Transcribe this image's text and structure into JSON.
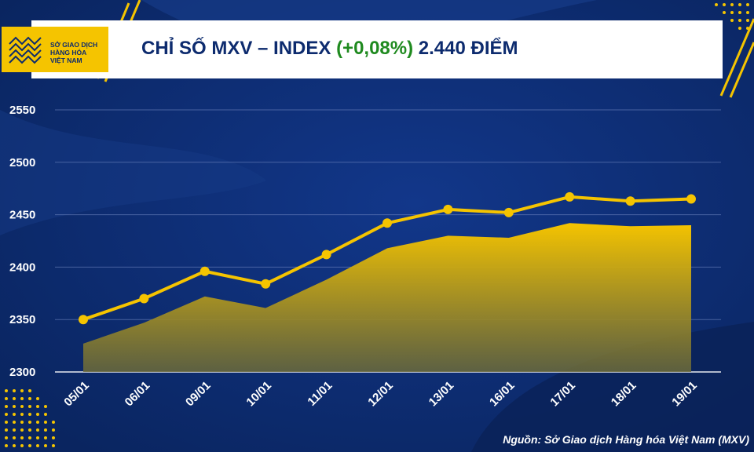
{
  "logo": {
    "line1": "SỞ GIAO DỊCH",
    "line2": "HÀNG HÓA",
    "line3": "VIỆT NAM"
  },
  "header": {
    "title_prefix": "CHỈ SỐ MXV – INDEX ",
    "change": "(+0,08%)",
    "title_suffix": " 2.440 ĐIỂM"
  },
  "source": "Nguồn: Sở Giao dịch Hàng hóa Việt Nam (MXV)",
  "colors": {
    "background": "#0d2b6e",
    "line": "#f5c400",
    "area_top": "#f5c400",
    "area_bottom": "#6b6a3a",
    "change": "#1f8a1f"
  },
  "chart_data": {
    "type": "line",
    "title": "CHỈ SỐ MXV – INDEX (+0,08%) 2.440 ĐIỂM",
    "categories": [
      "05/01",
      "06/01",
      "09/01",
      "10/01",
      "11/01",
      "12/01",
      "13/01",
      "16/01",
      "17/01",
      "18/01",
      "19/01"
    ],
    "series": [
      {
        "values": [
          2350,
          2370,
          2396,
          2384,
          2412,
          2442,
          2455,
          2452,
          2467,
          2463,
          2465
        ]
      },
      {
        "values": [
          2327,
          2347,
          2372,
          2361,
          2388,
          2418,
          2430,
          2428,
          2442,
          2439,
          2440
        ]
      }
    ],
    "ylim": [
      2300,
      2550
    ],
    "yticks": [
      2300,
      2350,
      2400,
      2450,
      2500,
      2550
    ],
    "grid": true
  }
}
